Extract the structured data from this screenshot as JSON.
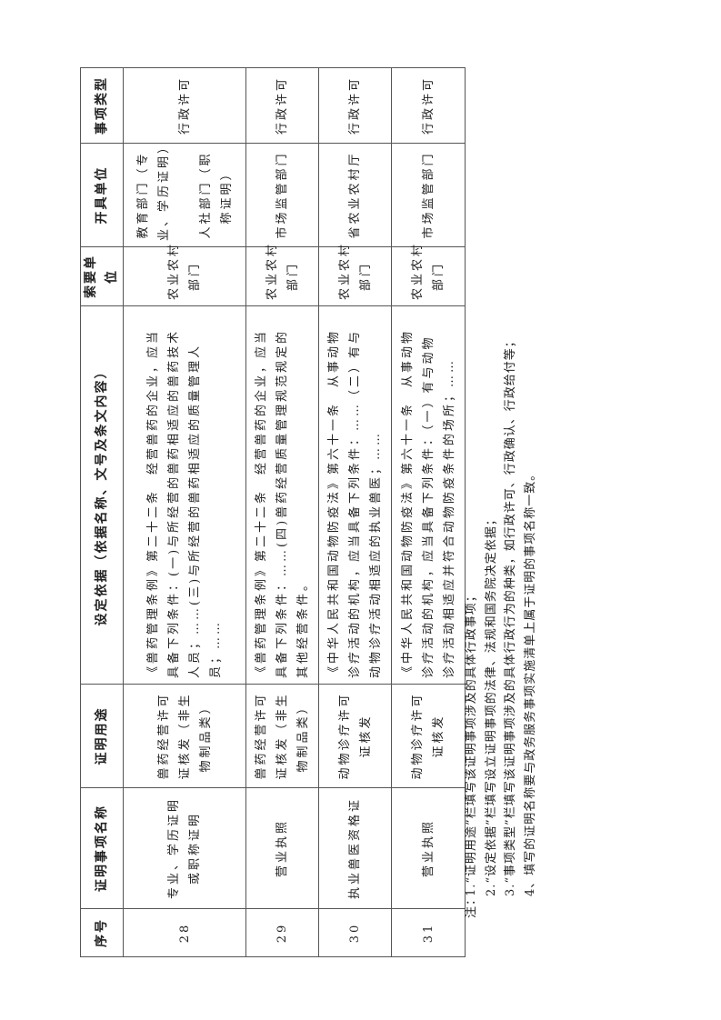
{
  "table": {
    "headers": [
      "序号",
      "证明事项名称",
      "证明用途",
      "设定依据（依据名称、文号及条文内容）",
      "索要单位",
      "开具单位",
      "事项类型"
    ],
    "rows": [
      {
        "no": "28",
        "name": [
          "专业、学历证明",
          "或职称证明"
        ],
        "use": [
          "兽药经营许可",
          "证核发（非生",
          "物制品类）"
        ],
        "basis": [
          "《兽药管理条例》第二十二条　经营兽药的企业，应当",
          "具备下列条件：(一)与所经营的兽药相适应的兽药技术",
          "人员；……(三)与所经营的兽药相适应的质量管理人",
          "员；……"
        ],
        "requester": [
          "农业农村",
          "部门"
        ],
        "issuer": [
          "教育部门（专",
          "业、学历证明）",
          "",
          "人社部门（职",
          "称证明）"
        ],
        "type": [
          "行政许可"
        ]
      },
      {
        "no": "29",
        "name": [
          "营业执照"
        ],
        "use": [
          "兽药经营许可",
          "证核发（非生",
          "物制品类）"
        ],
        "basis": [
          "《兽药管理条例》第二十二条　经营兽药的企业，应当",
          "具备下列条件：……(四)兽药经营质量管理规范规定的",
          "其他经营条件。"
        ],
        "requester": [
          "农业农村",
          "部门"
        ],
        "issuer": [
          "市场监管部门"
        ],
        "type": [
          "行政许可"
        ]
      },
      {
        "no": "30",
        "name": [
          "执业兽医资格证"
        ],
        "use": [
          "动物诊疗许可",
          "证核发"
        ],
        "basis": [
          "《中华人民共和国动物防疫法》第六十一条　从事动物",
          "诊疗活动的机构，应当具备下列条件：……（二）有与",
          "动物诊疗活动相适应的执业兽医；……"
        ],
        "requester": [
          "农业农村",
          "部门"
        ],
        "issuer": [
          "省农业农村厅"
        ],
        "type": [
          "行政许可"
        ]
      },
      {
        "no": "31",
        "name": [
          "营业执照"
        ],
        "use": [
          "动物诊疗许可",
          "证核发"
        ],
        "basis": [
          "《中华人民共和国动物防疫法》第六十一条　从事动物",
          "诊疗活动的机构，应当具备下列条件：（一）有与动物",
          "诊疗活动相适应并符合动物防疫条件的场所；……"
        ],
        "requester": [
          "农业农村",
          "部门"
        ],
        "issuer": [
          "市场监管部门"
        ],
        "type": [
          "行政许可"
        ]
      }
    ]
  },
  "notes": {
    "prefix": "注：",
    "items": [
      "1.“证明用途”栏填写该证明事项涉及的具体行政事项；",
      "2.“设定依据”栏填写设立证明事项的法律、法规和国务院决定依据；",
      "3.“事项类型”栏填写该证明事项涉及的具体行政行为的种类，如行政许可、行政确认、行政给付等；",
      "4、填写的证明名称要与政务服务事项实施清单上属于证明的事项名称一致。"
    ]
  }
}
